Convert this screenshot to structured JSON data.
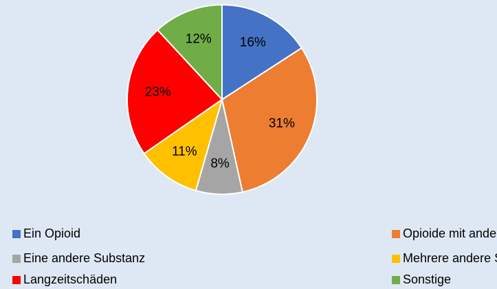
{
  "chart_data": {
    "type": "pie",
    "categories": [
      "Ein Opioid",
      "Opioide mit anderen Substanzen",
      "Eine andere Substanz",
      "Mehrere andere Substanzen",
      "Langzeitschäden",
      "Sonstige"
    ],
    "values": [
      16,
      31,
      8,
      11,
      23,
      12
    ],
    "value_labels": [
      "16%",
      "31%",
      "8%",
      "11%",
      "23%",
      "12%"
    ],
    "colors": [
      "#4472c4",
      "#ed7d31",
      "#a5a5a5",
      "#ffc000",
      "#ff0000",
      "#70ad47"
    ],
    "legend": "bottom"
  }
}
